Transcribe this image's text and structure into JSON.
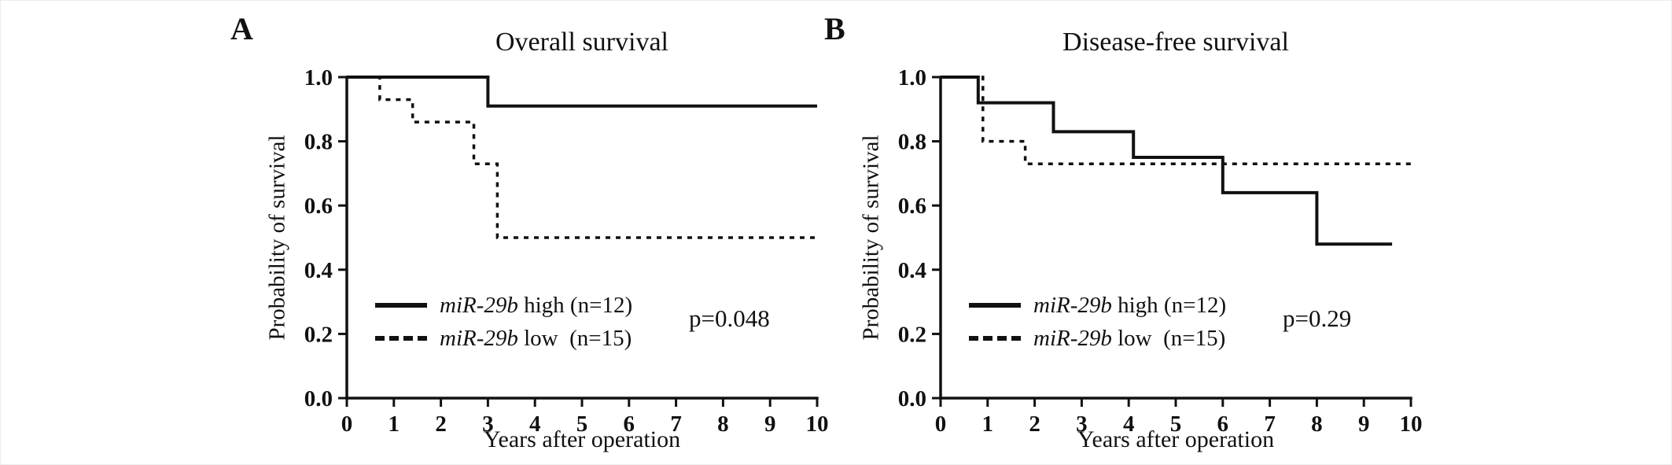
{
  "figure_colors": {
    "line": "#111111",
    "background": "#ffffff"
  },
  "chart_data": [
    {
      "type": "line",
      "step": "hv",
      "panel_label": "A",
      "title": "Overall survival",
      "xlabel": "Years after operation",
      "ylabel": "Probability of survival",
      "xlim": [
        0,
        10
      ],
      "ylim": [
        0.0,
        1.0
      ],
      "xticks": [
        "0",
        "1",
        "2",
        "3",
        "4",
        "5",
        "6",
        "7",
        "8",
        "9",
        "10"
      ],
      "yticks": [
        "0.0",
        "0.2",
        "0.4",
        "0.6",
        "0.8",
        "1.0"
      ],
      "p_label": "p=0.048",
      "legend": [
        {
          "italic": "miR-29b",
          "text": " high (n=12)",
          "style": "solid"
        },
        {
          "italic": "miR-29b",
          "text": " low  (n=15)",
          "style": "dashed"
        }
      ],
      "series": [
        {
          "name": "miR-29b high (n=12)",
          "style": "solid",
          "points": [
            [
              0,
              1.0
            ],
            [
              3,
              1.0
            ],
            [
              3,
              0.91
            ],
            [
              10,
              0.91
            ]
          ]
        },
        {
          "name": "miR-29b low (n=15)",
          "style": "dashed",
          "points": [
            [
              0,
              1.0
            ],
            [
              0.7,
              1.0
            ],
            [
              0.7,
              0.93
            ],
            [
              1.4,
              0.93
            ],
            [
              1.4,
              0.86
            ],
            [
              2.7,
              0.86
            ],
            [
              2.7,
              0.73
            ],
            [
              3.2,
              0.73
            ],
            [
              3.2,
              0.5
            ],
            [
              10,
              0.5
            ]
          ]
        }
      ]
    },
    {
      "type": "line",
      "step": "hv",
      "panel_label": "B",
      "title": "Disease-free survival",
      "xlabel": "Years after operation",
      "ylabel": "Probability of survival",
      "xlim": [
        0,
        10
      ],
      "ylim": [
        0.0,
        1.0
      ],
      "xticks": [
        "0",
        "1",
        "2",
        "3",
        "4",
        "5",
        "6",
        "7",
        "8",
        "9",
        "10"
      ],
      "yticks": [
        "0.0",
        "0.2",
        "0.4",
        "0.6",
        "0.8",
        "1.0"
      ],
      "p_label": "p=0.29",
      "legend": [
        {
          "italic": "miR-29b",
          "text": " high (n=12)",
          "style": "solid"
        },
        {
          "italic": "miR-29b",
          "text": " low  (n=15)",
          "style": "dashed"
        }
      ],
      "series": [
        {
          "name": "miR-29b high (n=12)",
          "style": "solid",
          "points": [
            [
              0,
              1.0
            ],
            [
              0.8,
              1.0
            ],
            [
              0.8,
              0.92
            ],
            [
              2.4,
              0.92
            ],
            [
              2.4,
              0.83
            ],
            [
              4.1,
              0.83
            ],
            [
              4.1,
              0.75
            ],
            [
              6.0,
              0.75
            ],
            [
              6.0,
              0.64
            ],
            [
              8.0,
              0.64
            ],
            [
              8.0,
              0.48
            ],
            [
              9.6,
              0.48
            ]
          ]
        },
        {
          "name": "miR-29b low (n=15)",
          "style": "dashed",
          "points": [
            [
              0,
              1.0
            ],
            [
              0.9,
              1.0
            ],
            [
              0.9,
              0.8
            ],
            [
              1.8,
              0.8
            ],
            [
              1.8,
              0.73
            ],
            [
              10,
              0.73
            ]
          ]
        }
      ]
    }
  ]
}
